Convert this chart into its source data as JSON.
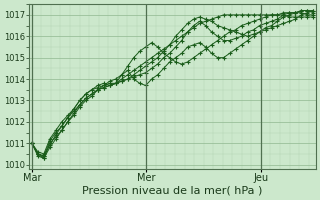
{
  "bg_color": "#cce8cc",
  "grid_color_minor": "#b0d4b0",
  "grid_color_major": "#90b890",
  "line_color": "#1a5c1a",
  "marker_color": "#1a5c1a",
  "xlabel": "Pression niveau de la mer( hPa )",
  "xlabel_fontsize": 8,
  "ylim": [
    1009.8,
    1017.5
  ],
  "yticks": [
    1010,
    1011,
    1012,
    1013,
    1014,
    1015,
    1016,
    1017
  ],
  "xtick_labels": [
    "Mar",
    "Mer",
    "Jeu"
  ],
  "xtick_positions": [
    0,
    96,
    192
  ],
  "xvlines": [
    0,
    96,
    192
  ],
  "xlim": [
    -2,
    238
  ],
  "n_points": 48,
  "series": [
    [
      1011.0,
      1010.5,
      1010.3,
      1011.0,
      1011.3,
      1011.6,
      1012.0,
      1012.3,
      1012.7,
      1013.0,
      1013.2,
      1013.5,
      1013.7,
      1013.9,
      1014.0,
      1014.2,
      1014.4,
      1014.0,
      1013.8,
      1013.7,
      1014.0,
      1014.2,
      1014.5,
      1014.8,
      1015.0,
      1015.2,
      1015.5,
      1015.6,
      1015.7,
      1015.5,
      1015.2,
      1015.0,
      1015.0,
      1015.2,
      1015.4,
      1015.6,
      1015.8,
      1016.0,
      1016.2,
      1016.4,
      1016.5,
      1016.7,
      1016.9,
      1017.0,
      1017.1,
      1017.2,
      1017.2,
      1017.2
    ],
    [
      1011.0,
      1010.6,
      1010.5,
      1011.2,
      1011.6,
      1012.0,
      1012.3,
      1012.6,
      1013.0,
      1013.3,
      1013.5,
      1013.7,
      1013.8,
      1013.7,
      1013.8,
      1014.2,
      1014.6,
      1015.0,
      1015.3,
      1015.5,
      1015.7,
      1015.5,
      1015.2,
      1015.0,
      1014.8,
      1014.7,
      1014.8,
      1015.0,
      1015.2,
      1015.4,
      1015.6,
      1015.8,
      1016.0,
      1016.2,
      1016.3,
      1016.5,
      1016.6,
      1016.7,
      1016.8,
      1016.9,
      1017.0,
      1017.0,
      1017.1,
      1017.1,
      1017.1,
      1017.1,
      1017.0,
      1017.0
    ],
    [
      1011.0,
      1010.5,
      1010.4,
      1011.1,
      1011.5,
      1011.8,
      1012.2,
      1012.5,
      1012.8,
      1013.1,
      1013.3,
      1013.5,
      1013.6,
      1013.7,
      1013.8,
      1013.9,
      1014.0,
      1014.1,
      1014.2,
      1014.3,
      1014.5,
      1014.7,
      1015.0,
      1015.2,
      1015.5,
      1015.8,
      1016.2,
      1016.5,
      1016.7,
      1016.5,
      1016.2,
      1016.0,
      1015.8,
      1015.8,
      1015.9,
      1016.0,
      1016.2,
      1016.3,
      1016.5,
      1016.6,
      1016.7,
      1016.8,
      1017.0,
      1017.1,
      1017.1,
      1017.2,
      1017.2,
      1017.1
    ],
    [
      1011.0,
      1010.4,
      1010.3,
      1010.8,
      1011.2,
      1011.6,
      1012.0,
      1012.4,
      1012.8,
      1013.1,
      1013.3,
      1013.5,
      1013.6,
      1013.7,
      1013.8,
      1014.0,
      1014.2,
      1014.4,
      1014.6,
      1014.8,
      1015.0,
      1015.2,
      1015.4,
      1015.6,
      1015.8,
      1016.0,
      1016.2,
      1016.4,
      1016.6,
      1016.7,
      1016.8,
      1016.9,
      1017.0,
      1017.0,
      1017.0,
      1017.0,
      1017.0,
      1017.0,
      1017.0,
      1017.0,
      1017.0,
      1017.0,
      1017.0,
      1016.9,
      1016.9,
      1016.9,
      1016.9,
      1016.9
    ],
    [
      1011.0,
      1010.5,
      1010.4,
      1010.9,
      1011.4,
      1011.8,
      1012.2,
      1012.6,
      1013.0,
      1013.3,
      1013.5,
      1013.6,
      1013.7,
      1013.8,
      1013.8,
      1013.9,
      1014.0,
      1014.2,
      1014.4,
      1014.6,
      1014.8,
      1015.0,
      1015.3,
      1015.6,
      1016.0,
      1016.3,
      1016.6,
      1016.8,
      1016.9,
      1016.8,
      1016.7,
      1016.5,
      1016.4,
      1016.3,
      1016.2,
      1016.1,
      1016.0,
      1016.1,
      1016.2,
      1016.3,
      1016.4,
      1016.5,
      1016.6,
      1016.7,
      1016.8,
      1017.0,
      1017.1,
      1017.2
    ]
  ]
}
